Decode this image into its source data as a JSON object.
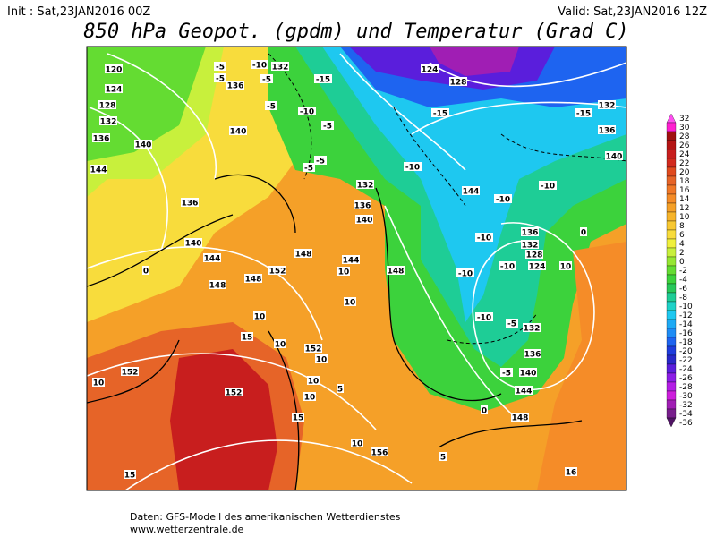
{
  "header": {
    "init": "Init : Sat,23JAN2016 00Z",
    "valid": "Valid: Sat,23JAN2016 12Z",
    "title": "850 hPa Geopot. (gpdm) und Temperatur (Grad C)"
  },
  "colorbar": {
    "ticks": [
      32,
      30,
      28,
      26,
      24,
      22,
      20,
      18,
      16,
      14,
      12,
      10,
      8,
      6,
      4,
      2,
      0,
      -2,
      -4,
      -6,
      -8,
      -10,
      -12,
      -14,
      -16,
      -18,
      -20,
      -22,
      -24,
      -26,
      -28,
      -30,
      -32,
      -34,
      -36
    ],
    "colors": [
      "#ff4df0",
      "#ff1fd0",
      "#a01010",
      "#b41414",
      "#c81e1e",
      "#d22a1e",
      "#e04a1e",
      "#e66428",
      "#f07828",
      "#f58c28",
      "#f5a028",
      "#f7b42a",
      "#f8c832",
      "#f8dc3c",
      "#f0f03c",
      "#c8f03c",
      "#96e632",
      "#64dc32",
      "#3cd23c",
      "#28c85a",
      "#1ecd96",
      "#1ed2c8",
      "#1ec8f0",
      "#1eaaf5",
      "#1e8cf5",
      "#1e64f0",
      "#1e3cdc",
      "#2828c8",
      "#5a1edc",
      "#8c1ee6",
      "#b41ee6",
      "#cd1edc",
      "#a01eb4",
      "#781e8c",
      "#501464"
    ]
  },
  "map": {
    "labels": [
      "120",
      "124",
      "128",
      "132",
      "136",
      "140",
      "144",
      "-5",
      "-10",
      "132",
      "-5",
      "136",
      "-5",
      "-15",
      "124",
      "128",
      "-10",
      "-5",
      "-15",
      "140",
      "-5",
      "-15",
      "132",
      "136",
      "-10",
      "-5",
      "-5",
      "132",
      "144",
      "-10",
      "-10",
      "140",
      "136",
      "140",
      "144",
      "148",
      "148",
      "152",
      "148",
      "140",
      "136",
      "144",
      "148",
      "10",
      "10",
      "-10",
      "136",
      "132",
      "128",
      "124",
      "-10",
      "-10",
      "-10",
      "-5",
      "132",
      "136",
      "140",
      "-5",
      "144",
      "148",
      "10",
      "15",
      "10",
      "152",
      "10",
      "10",
      "5",
      "10",
      "15",
      "152",
      "152",
      "10",
      "156",
      "10",
      "5",
      "15",
      "16",
      "0",
      "0",
      "0",
      "10"
    ]
  },
  "footer": {
    "line1": "Daten: GFS-Modell des amerikanischen Wetterdienstes",
    "line2": "www.wetterzentrale.de"
  }
}
